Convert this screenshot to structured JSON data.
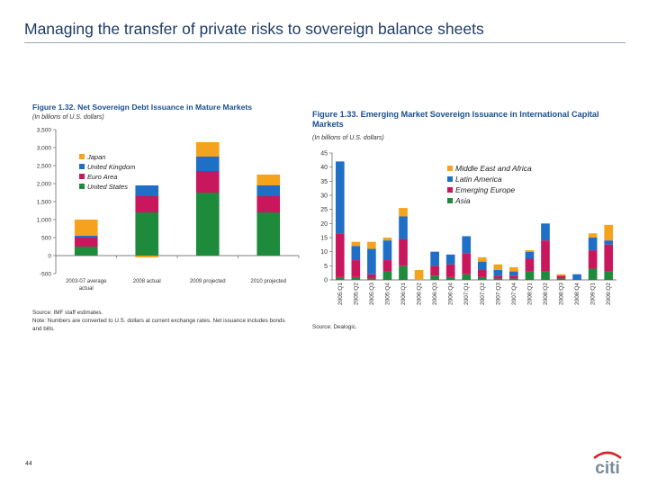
{
  "slide": {
    "title": "Managing the transfer of private risks to sovereign balance sheets",
    "page_number": "44",
    "logo_text": "citi"
  },
  "colors": {
    "japan": "#f5a21c",
    "uk": "#1f6fc6",
    "euro": "#c8175d",
    "us": "#1d8a3c",
    "title_blue": "#1a4f8f"
  },
  "chart_data": [
    {
      "type": "bar",
      "stacked": true,
      "title": "Figure 1.32. Net Sovereign Debt Issuance in Mature Markets",
      "subtitle": "(In billions of U.S. dollars)",
      "xlabel": "",
      "ylabel": "",
      "ylim": [
        -500,
        3500
      ],
      "yticks": [
        "3,500",
        "3,000",
        "2,500",
        "2,000",
        "1,500",
        "1,000",
        "500",
        "0",
        "-500"
      ],
      "categories": [
        "2003-07 average actual",
        "2008 actual",
        "2009 projected",
        "2010 projected"
      ],
      "series": [
        {
          "name": "United States",
          "color": "#1d8a3c",
          "values": [
            250,
            1200,
            1750,
            1200
          ]
        },
        {
          "name": "Euro Area",
          "color": "#c8175d",
          "values": [
            250,
            450,
            600,
            450
          ]
        },
        {
          "name": "United Kingdom",
          "color": "#1f6fc6",
          "values": [
            50,
            300,
            400,
            300
          ]
        },
        {
          "name": "Japan",
          "color": "#f5a21c",
          "values": [
            450,
            -50,
            400,
            300
          ]
        }
      ],
      "legend": [
        "Japan",
        "United Kingdom",
        "Euro Area",
        "United States"
      ],
      "legend_position": "top-left",
      "source": "Source: IMF staff estimates.",
      "note": "Note: Numbers are converted to U.S. dollars at current exchange rates. Net issuance includes bonds and bills."
    },
    {
      "type": "bar",
      "stacked": true,
      "title": "Figure 1.33. Emerging Market Sovereign Issuance in International Capital Markets",
      "subtitle": "(In billions of U.S. dollars)",
      "xlabel": "",
      "ylabel": "",
      "ylim": [
        0,
        45
      ],
      "yticks": [
        "45",
        "40",
        "35",
        "30",
        "25",
        "20",
        "15",
        "10",
        "5",
        "0"
      ],
      "categories": [
        "2005:Q1",
        "2005:Q2",
        "2005:Q3",
        "2005:Q4",
        "2006:Q1",
        "2006:Q2",
        "2006:Q3",
        "2006:Q4",
        "2007:Q1",
        "2007:Q2",
        "2007:Q3",
        "2007:Q4",
        "2008:Q1",
        "2008:Q2",
        "2008:Q3",
        "2008:Q4",
        "2009:Q1",
        "2009:Q2"
      ],
      "series": [
        {
          "name": "Asia",
          "color": "#1d8a3c",
          "values": [
            1,
            1,
            0.5,
            3,
            5,
            0,
            1.5,
            1,
            2,
            1,
            0.5,
            0.5,
            3,
            3,
            0.5,
            0,
            4,
            3
          ]
        },
        {
          "name": "Emerging Europe",
          "color": "#c8175d",
          "values": [
            15.5,
            6,
            1.5,
            4,
            9.5,
            0,
            3.5,
            4.5,
            7.5,
            2.5,
            1,
            1,
            4.5,
            11,
            1,
            0,
            6.5,
            9.5
          ]
        },
        {
          "name": "Latin America",
          "color": "#1f6fc6",
          "values": [
            25.5,
            5,
            9,
            7,
            8,
            0,
            5,
            3.5,
            6,
            3,
            2,
            1.5,
            2.5,
            6,
            0,
            2,
            4.5,
            1.5
          ]
        },
        {
          "name": "Middle East and Africa",
          "color": "#f5a21c",
          "values": [
            0,
            1.5,
            2.5,
            1,
            3,
            3.5,
            0,
            0,
            0,
            1.5,
            2,
            1.5,
            0.5,
            0,
            0.5,
            0,
            1.5,
            5.5
          ]
        }
      ],
      "legend": [
        "Middle East and Africa",
        "Latin America",
        "Emerging Europe",
        "Asia"
      ],
      "legend_position": "top-right",
      "source": "Source: Dealogic."
    }
  ]
}
